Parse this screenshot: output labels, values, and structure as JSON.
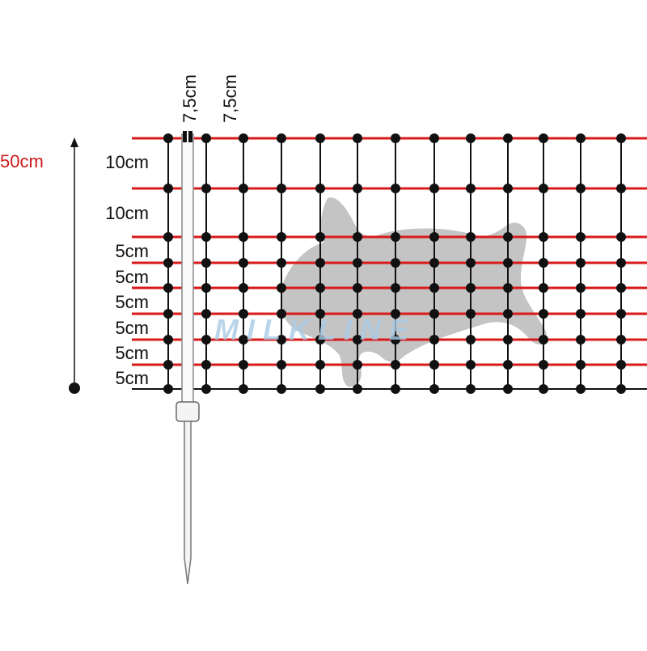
{
  "labels": {
    "total_height": "50cm",
    "spacings": [
      "10cm",
      "10cm",
      "5cm",
      "5cm",
      "5cm",
      "5cm",
      "5cm",
      "5cm"
    ],
    "post_spacings": [
      "7,5cm",
      "7,5cm"
    ]
  },
  "watermark": "MILKLINE"
}
